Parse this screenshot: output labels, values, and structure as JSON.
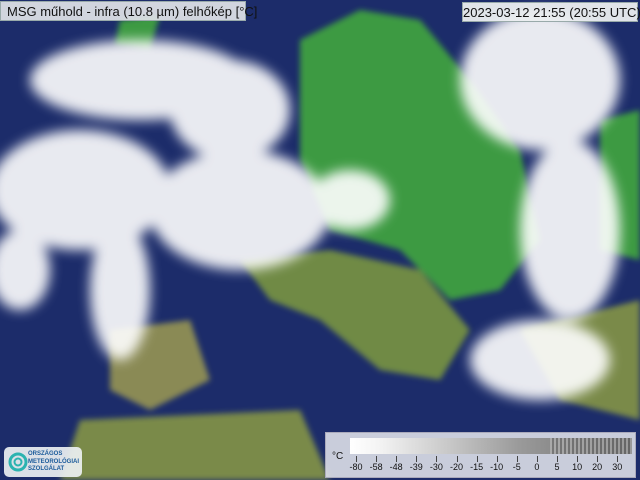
{
  "title": "MSG műhold - infra (10.8 µm) felhőkép [°C]",
  "timestamp": "2023-03-12 21:55 (20:55 UTC)",
  "legend": {
    "unit": "°C",
    "ticks": [
      "-80",
      "-58",
      "-48",
      "-39",
      "-30",
      "-20",
      "-15",
      "-10",
      "-5",
      "0",
      "5",
      "10",
      "20",
      "30"
    ]
  },
  "logo": {
    "lines": [
      "ORSZÁGOS",
      "METEOROLÓGIAI",
      "SZOLGÁLAT"
    ]
  },
  "colors": {
    "sea": "#1c2c6a",
    "land": "#3a9a40",
    "cloud": "#ffffff",
    "accent_logo": "#2bb3b0"
  }
}
